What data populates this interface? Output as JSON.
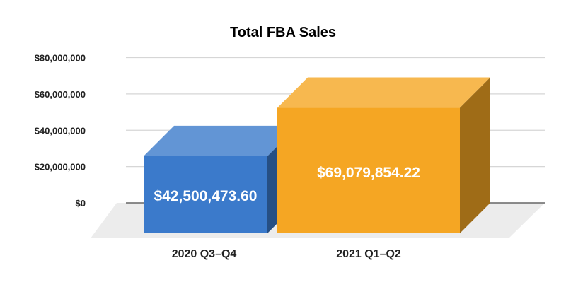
{
  "chart_data": {
    "type": "bar",
    "style": "3d",
    "title": "Total FBA Sales",
    "xlabel": "",
    "ylabel": "",
    "categories": [
      "2020 Q3–Q4",
      "2021 Q1–Q2"
    ],
    "values": [
      42500473.6,
      69079854.22
    ],
    "data_labels": [
      "$42,500,473.60",
      "$69,079,854.22"
    ],
    "colors": [
      "#3b7acb",
      "#f5a623"
    ],
    "ylim": [
      0,
      80000000
    ],
    "yticks": [
      0,
      20000000,
      40000000,
      60000000,
      80000000
    ],
    "ytick_labels": [
      "$0",
      "$20,000,000",
      "$40,000,000",
      "$60,000,000",
      "$80,000,000"
    ],
    "grid": true,
    "legend": "none"
  }
}
